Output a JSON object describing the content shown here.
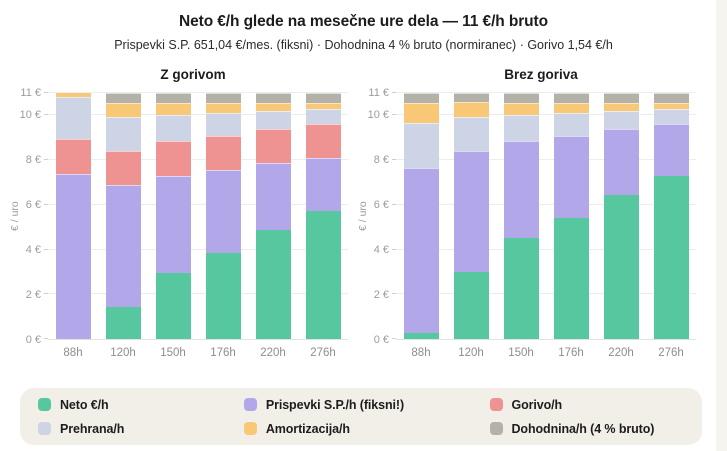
{
  "header": {
    "title": "Neto €/h glede na mesečne ure dela — 11 €/h bruto",
    "subtitle": "Prispevki S.P. 651,04 €/mes. (fiksni) · Dohodnina 4 % bruto (normiranec) · Gorivo 1,54 €/h"
  },
  "colors": {
    "neto": "#57c7a0",
    "prispevki": "#b1a7e9",
    "gorivo": "#ef9392",
    "prehrana": "#cdd4e5",
    "amortizacija": "#f9c876",
    "dohodnina": "#b3b1a8",
    "page_bg": "#ffffff",
    "card_bg": "#f1efe7",
    "side_strip_bg": "#f6f4ee",
    "grid_line": "#ededed",
    "tick_text": "#9c9c9c"
  },
  "legend": {
    "items": [
      {
        "label": "Neto €/h",
        "color_key": "neto"
      },
      {
        "label": "Prispevki S.P./h (fiksni!)",
        "color_key": "prispevki"
      },
      {
        "label": "Gorivo/h",
        "color_key": "gorivo"
      },
      {
        "label": "Prehrana/h",
        "color_key": "prehrana"
      },
      {
        "label": "Amortizacija/h",
        "color_key": "amortizacija"
      },
      {
        "label": "Dohodnina/h (4 % bruto)",
        "color_key": "dohodnina"
      }
    ]
  },
  "chart_data": [
    {
      "type": "bar",
      "stacked": true,
      "title": "Z gorivom",
      "ylabel": "€ / uro",
      "ylim": [
        0,
        11
      ],
      "yticks": [
        0,
        2,
        4,
        6,
        8,
        10,
        11
      ],
      "ytick_suffix": " €",
      "grid": true,
      "categories": [
        "88h",
        "120h",
        "150h",
        "176h",
        "220h",
        "276h"
      ],
      "series": [
        {
          "name": "Neto €/h",
          "color_key": "neto",
          "values": [
            0,
            1.45,
            2.96,
            3.86,
            4.89,
            5.73
          ]
        },
        {
          "name": "Prispevki S.P./h (fiksni!)",
          "color_key": "prispevki",
          "values": [
            7.4,
            5.43,
            4.34,
            3.7,
            2.96,
            2.36
          ]
        },
        {
          "name": "Gorivo/h",
          "color_key": "gorivo",
          "values": [
            1.54,
            1.54,
            1.54,
            1.54,
            1.54,
            1.54
          ]
        },
        {
          "name": "Prehrana/h",
          "color_key": "prehrana",
          "values": [
            1.88,
            1.5,
            1.2,
            1.02,
            0.82,
            0.65
          ]
        },
        {
          "name": "Amortizacija/h",
          "color_key": "amortizacija",
          "values": [
            0.89,
            0.65,
            0.52,
            0.44,
            0.35,
            0.28
          ]
        },
        {
          "name": "Dohodnina/h (4 % bruto)",
          "color_key": "dohodnina",
          "values": [
            0.44,
            0.44,
            0.44,
            0.44,
            0.44,
            0.44
          ]
        }
      ],
      "note": "stack clipped at 11 € axis max; at 88h neto is 0 and top segments are cut off"
    },
    {
      "type": "bar",
      "stacked": true,
      "title": "Brez goriva",
      "ylabel": "€ / uro",
      "ylim": [
        0,
        11
      ],
      "yticks": [
        0,
        2,
        4,
        6,
        8,
        10,
        11
      ],
      "ytick_suffix": " €",
      "grid": true,
      "categories": [
        "88h",
        "120h",
        "150h",
        "176h",
        "220h",
        "276h"
      ],
      "series": [
        {
          "name": "Neto €/h",
          "color_key": "neto",
          "values": [
            0.25,
            3.0,
            4.5,
            5.4,
            6.43,
            7.27
          ]
        },
        {
          "name": "Prispevki S.P./h (fiksni!)",
          "color_key": "prispevki",
          "values": [
            7.4,
            5.43,
            4.34,
            3.7,
            2.96,
            2.36
          ]
        },
        {
          "name": "Prehrana/h",
          "color_key": "prehrana",
          "values": [
            2.0,
            1.5,
            1.2,
            1.02,
            0.82,
            0.65
          ]
        },
        {
          "name": "Amortizacija/h",
          "color_key": "amortizacija",
          "values": [
            0.9,
            0.65,
            0.52,
            0.44,
            0.35,
            0.28
          ]
        },
        {
          "name": "Dohodnina/h (4 % bruto)",
          "color_key": "dohodnina",
          "values": [
            0.44,
            0.44,
            0.44,
            0.44,
            0.44,
            0.44
          ]
        }
      ],
      "note": "stack totals 11 € (bruto) for every hours level"
    }
  ]
}
